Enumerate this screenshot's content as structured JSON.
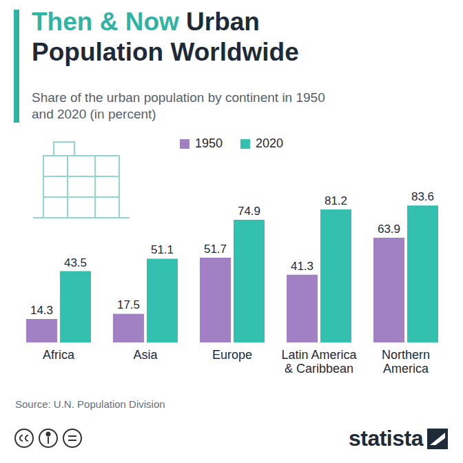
{
  "chart_data": {
    "type": "bar",
    "title": "Then & Now Urban Population Worldwide",
    "subtitle": "Share of the urban population by continent in 1950 and 2020 (in percent)",
    "categories": [
      "Africa",
      "Asia",
      "Europe",
      "Latin America & Caribbean",
      "Northern America"
    ],
    "series": [
      {
        "name": "1950",
        "color": "#a280c4",
        "values": [
          14.3,
          17.5,
          51.7,
          41.3,
          63.9
        ]
      },
      {
        "name": "2020",
        "color": "#33c0ae",
        "values": [
          43.5,
          51.1,
          74.9,
          81.2,
          83.6
        ]
      }
    ],
    "ylim": [
      0,
      90
    ],
    "tick_labels": "x",
    "data_labels": true,
    "grid": false,
    "legend": "top",
    "annotations": [
      "Source: U.N. Population Division",
      "statista"
    ]
  }
}
